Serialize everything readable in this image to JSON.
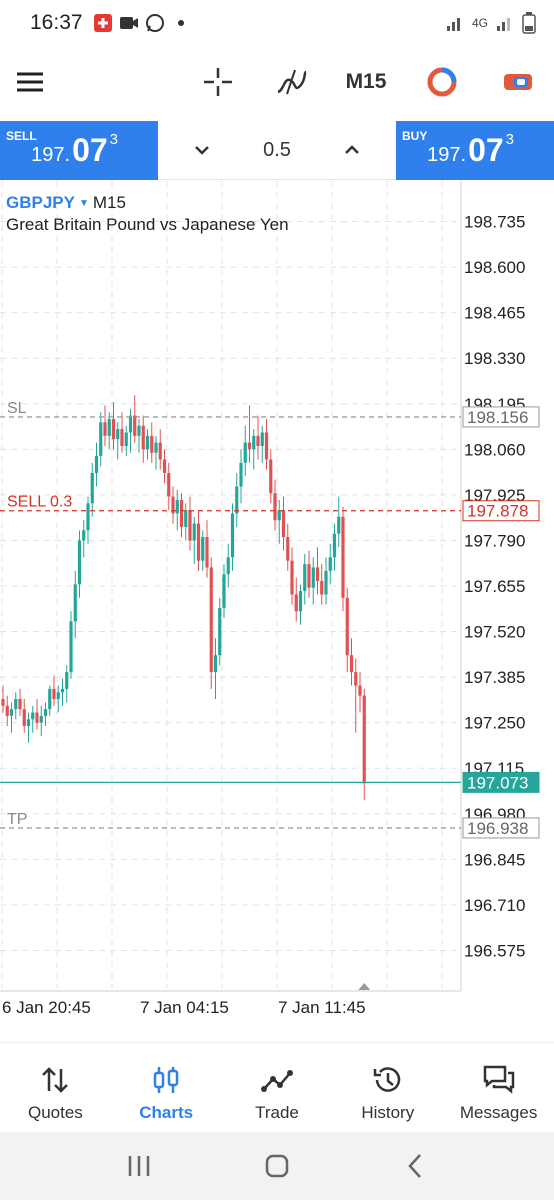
{
  "status_bar": {
    "time": "16:37",
    "network": "4G"
  },
  "toolbar": {
    "menu_icon": "hamburger-icon",
    "crosshair_icon": "crosshair-icon",
    "indicator_icon": "indicator-icon",
    "timeframe": "M15",
    "objects_icon": "objects-icon",
    "chart_type_icon": "chart-type-icon"
  },
  "trade": {
    "sell_label": "SELL",
    "sell_price_small": "197.",
    "sell_price_big": "07",
    "sell_price_sup": "3",
    "buy_label": "BUY",
    "buy_price_small": "197.",
    "buy_price_big": "07",
    "buy_price_sup": "3",
    "volume": "0.5"
  },
  "chart": {
    "symbol": "GBPJPY",
    "timeframe": "M15",
    "description": "Great Britain Pound vs Japanese Yen",
    "y_ticks": [
      "198.735",
      "198.600",
      "198.465",
      "198.330",
      "198.195",
      "198.060",
      "197.925",
      "197.790",
      "197.655",
      "197.520",
      "197.385",
      "197.250",
      "197.115",
      "196.980",
      "196.845",
      "196.710",
      "196.575"
    ],
    "x_ticks": [
      "6 Jan 20:45",
      "7 Jan 04:15",
      "7 Jan 11:45"
    ],
    "levels": {
      "sl_label": "SL",
      "sl_price": "198.156",
      "sell_label": "SELL 0.3",
      "sell_price": "197.878",
      "current_price": "197.073",
      "tp_label": "TP",
      "tp_price": "196.938"
    },
    "colors": {
      "bull": "#26a69a",
      "bear": "#e05252",
      "grid": "#e3e3e3",
      "sell_line": "#d93025",
      "current_line": "#26a69a",
      "sltp_line": "#9e9e9e"
    }
  },
  "chart_data": {
    "type": "candlestick",
    "title": "GBPJPY, M15",
    "ylim": [
      196.52,
      198.79
    ],
    "x_ticks": [
      "6 Jan 20:45",
      "7 Jan 04:15",
      "7 Jan 11:45"
    ],
    "candles": [
      [
        197.32,
        197.36,
        197.28,
        197.3
      ],
      [
        197.3,
        197.33,
        197.24,
        197.27
      ],
      [
        197.27,
        197.31,
        197.22,
        197.29
      ],
      [
        197.29,
        197.34,
        197.26,
        197.32
      ],
      [
        197.32,
        197.35,
        197.27,
        197.29
      ],
      [
        197.29,
        197.32,
        197.22,
        197.24
      ],
      [
        197.24,
        197.28,
        197.19,
        197.26
      ],
      [
        197.26,
        197.3,
        197.22,
        197.28
      ],
      [
        197.28,
        197.32,
        197.23,
        197.25
      ],
      [
        197.25,
        197.3,
        197.21,
        197.27
      ],
      [
        197.27,
        197.31,
        197.24,
        197.29
      ],
      [
        197.29,
        197.36,
        197.27,
        197.35
      ],
      [
        197.35,
        197.39,
        197.3,
        197.32
      ],
      [
        197.32,
        197.36,
        197.28,
        197.34
      ],
      [
        197.34,
        197.38,
        197.3,
        197.35
      ],
      [
        197.35,
        197.42,
        197.31,
        197.4
      ],
      [
        197.4,
        197.58,
        197.38,
        197.55
      ],
      [
        197.55,
        197.7,
        197.5,
        197.66
      ],
      [
        197.66,
        197.82,
        197.62,
        197.79
      ],
      [
        197.79,
        197.85,
        197.74,
        197.82
      ],
      [
        197.82,
        197.92,
        197.78,
        197.9
      ],
      [
        197.9,
        198.02,
        197.86,
        197.99
      ],
      [
        197.99,
        198.08,
        197.95,
        198.04
      ],
      [
        198.04,
        198.17,
        198.01,
        198.14
      ],
      [
        198.14,
        198.19,
        198.07,
        198.1
      ],
      [
        198.1,
        198.17,
        198.06,
        198.15
      ],
      [
        198.15,
        198.2,
        198.06,
        198.09
      ],
      [
        198.09,
        198.14,
        198.03,
        198.12
      ],
      [
        198.12,
        198.17,
        198.05,
        198.07
      ],
      [
        198.07,
        198.13,
        198.04,
        198.11
      ],
      [
        198.11,
        198.18,
        198.05,
        198.16
      ],
      [
        198.16,
        198.22,
        198.08,
        198.1
      ],
      [
        198.1,
        198.15,
        198.05,
        198.13
      ],
      [
        198.13,
        198.16,
        198.02,
        198.06
      ],
      [
        198.06,
        198.12,
        198.03,
        198.1
      ],
      [
        198.1,
        198.14,
        198.02,
        198.05
      ],
      [
        198.05,
        198.1,
        198.0,
        198.08
      ],
      [
        198.08,
        198.12,
        198.0,
        198.03
      ],
      [
        198.03,
        198.06,
        197.96,
        197.99
      ],
      [
        197.99,
        198.02,
        197.88,
        197.92
      ],
      [
        197.92,
        197.95,
        197.84,
        197.87
      ],
      [
        197.87,
        197.94,
        197.82,
        197.91
      ],
      [
        197.91,
        197.93,
        197.8,
        197.83
      ],
      [
        197.83,
        197.9,
        197.79,
        197.88
      ],
      [
        197.88,
        197.92,
        197.76,
        197.79
      ],
      [
        197.79,
        197.86,
        197.72,
        197.84
      ],
      [
        197.84,
        197.88,
        197.7,
        197.73
      ],
      [
        197.73,
        197.82,
        197.7,
        197.8
      ],
      [
        197.8,
        197.85,
        197.68,
        197.71
      ],
      [
        197.71,
        197.74,
        197.35,
        197.4
      ],
      [
        197.4,
        197.5,
        197.32,
        197.45
      ],
      [
        197.45,
        197.62,
        197.42,
        197.59
      ],
      [
        197.59,
        197.72,
        197.56,
        197.69
      ],
      [
        197.69,
        197.78,
        197.65,
        197.74
      ],
      [
        197.74,
        197.9,
        197.7,
        197.87
      ],
      [
        197.87,
        197.99,
        197.83,
        197.95
      ],
      [
        197.95,
        198.06,
        197.9,
        198.02
      ],
      [
        198.02,
        198.13,
        197.98,
        198.08
      ],
      [
        198.08,
        198.19,
        198.02,
        198.06
      ],
      [
        198.06,
        198.12,
        198.0,
        198.1
      ],
      [
        198.1,
        198.16,
        198.03,
        198.07
      ],
      [
        198.07,
        198.13,
        198.02,
        198.11
      ],
      [
        198.11,
        198.15,
        198.0,
        198.03
      ],
      [
        198.03,
        198.06,
        197.9,
        197.93
      ],
      [
        197.93,
        197.97,
        197.82,
        197.85
      ],
      [
        197.85,
        197.91,
        197.78,
        197.88
      ],
      [
        197.88,
        197.92,
        197.76,
        197.8
      ],
      [
        197.8,
        197.84,
        197.7,
        197.73
      ],
      [
        197.73,
        197.77,
        197.6,
        197.63
      ],
      [
        197.63,
        197.68,
        197.55,
        197.58
      ],
      [
        197.58,
        197.66,
        197.54,
        197.64
      ],
      [
        197.64,
        197.75,
        197.6,
        197.72
      ],
      [
        197.72,
        197.76,
        197.62,
        197.65
      ],
      [
        197.65,
        197.74,
        197.6,
        197.71
      ],
      [
        197.71,
        197.77,
        197.63,
        197.67
      ],
      [
        197.67,
        197.72,
        197.6,
        197.63
      ],
      [
        197.63,
        197.74,
        197.6,
        197.7
      ],
      [
        197.7,
        197.78,
        197.66,
        197.74
      ],
      [
        197.74,
        197.84,
        197.7,
        197.81
      ],
      [
        197.81,
        197.92,
        197.77,
        197.86
      ],
      [
        197.86,
        197.89,
        197.58,
        197.62
      ],
      [
        197.62,
        197.65,
        197.4,
        197.45
      ],
      [
        197.45,
        197.5,
        197.36,
        197.4
      ],
      [
        197.4,
        197.44,
        197.22,
        197.36
      ],
      [
        197.36,
        197.4,
        197.28,
        197.33
      ],
      [
        197.33,
        197.35,
        197.02,
        197.07
      ]
    ],
    "lines": {
      "SL": 198.156,
      "SELL 0.3": 197.878,
      "current": 197.073,
      "TP": 196.938
    }
  },
  "bottom_nav": [
    {
      "label": "Quotes",
      "icon": "quotes-icon"
    },
    {
      "label": "Charts",
      "icon": "charts-icon"
    },
    {
      "label": "Trade",
      "icon": "trade-icon"
    },
    {
      "label": "History",
      "icon": "history-icon"
    },
    {
      "label": "Messages",
      "icon": "messages-icon"
    }
  ]
}
